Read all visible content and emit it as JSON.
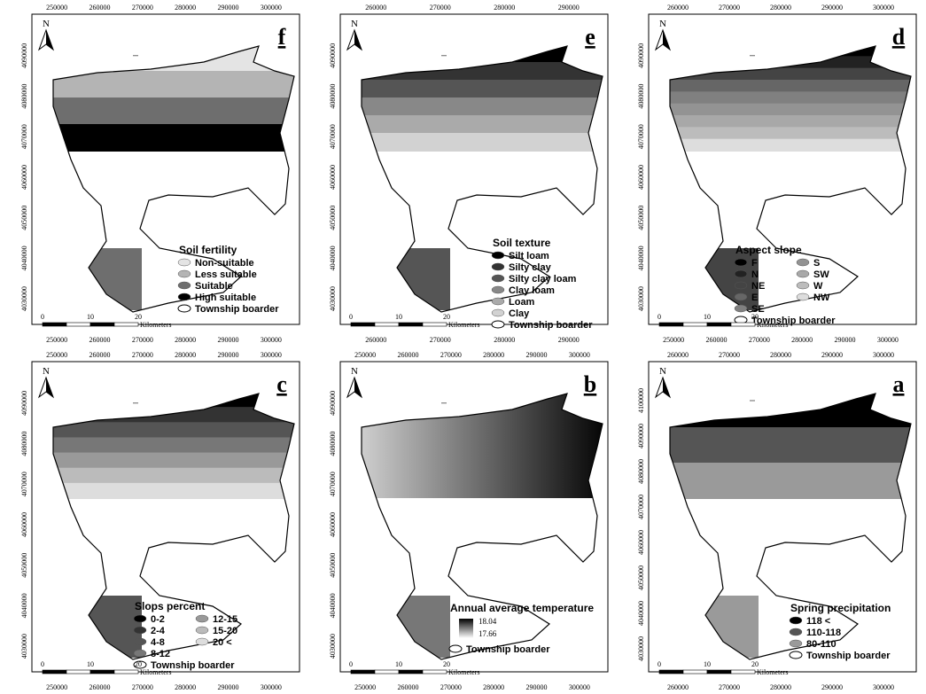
{
  "panels": [
    {
      "letter": "f",
      "north": "N",
      "xticks_top": [
        250000,
        260000,
        270000,
        280000,
        290000,
        300000
      ],
      "xticks_bottom": [
        250000,
        260000,
        270000,
        280000,
        290000,
        300000
      ],
      "yticks": [
        4090000,
        4080000,
        4070000,
        4060000,
        4050000,
        4040000,
        4030000
      ],
      "scale": {
        "ticks": [
          "0",
          "10",
          "20"
        ],
        "unit": "Kilometers"
      },
      "legend": {
        "title": "Soil fertility",
        "township": "Township boarder",
        "items": [
          {
            "label": "Non-suitable",
            "color": "#e4e4e4"
          },
          {
            "label": "Less suitable",
            "color": "#b4b4b4"
          },
          {
            "label": "Suitable",
            "color": "#6e6e6e"
          },
          {
            "label": "High suitable",
            "color": "#000000"
          }
        ]
      }
    },
    {
      "letter": "e",
      "north": "N",
      "xticks_top": [
        260000,
        270000,
        280000,
        290000
      ],
      "xticks_bottom": [
        260000,
        270000,
        280000,
        290000
      ],
      "yticks": [
        4090000,
        4080000,
        4070000,
        4060000,
        4050000,
        4040000,
        4030000
      ],
      "scale": {
        "ticks": [
          "0",
          "10",
          "20"
        ],
        "unit": "Kilometers"
      },
      "legend": {
        "title": "Soil texture",
        "township": "Township boarder",
        "items": [
          {
            "label": "Silt loam",
            "color": "#000000"
          },
          {
            "label": "Silty clay",
            "color": "#333333"
          },
          {
            "label": "Silty clay loam",
            "color": "#555555"
          },
          {
            "label": "Clay loam",
            "color": "#888888"
          },
          {
            "label": "Loam",
            "color": "#aaaaaa"
          },
          {
            "label": "Clay",
            "color": "#d2d2d2"
          }
        ]
      }
    },
    {
      "letter": "d",
      "north": "N",
      "xticks_top": [
        260000,
        270000,
        280000,
        290000,
        300000
      ],
      "xticks_bottom": [
        250000,
        260000,
        270000,
        280000,
        290000,
        300000
      ],
      "yticks": [
        4090000,
        4080000,
        4070000,
        4060000,
        4050000,
        4040000,
        4030000
      ],
      "scale": {
        "ticks": [
          "0",
          "10",
          "20"
        ],
        "unit": "Kilometers"
      },
      "legend": {
        "title": "Aspect slope",
        "township": "Township boarder",
        "items": [
          {
            "label": "F",
            "color": "#000000"
          },
          {
            "label": "N",
            "color": "#222222"
          },
          {
            "label": "NE",
            "color": "#444444"
          },
          {
            "label": "E",
            "color": "#666666"
          },
          {
            "label": "SE",
            "color": "#808080"
          },
          {
            "label": "S",
            "color": "#939393"
          },
          {
            "label": "SW",
            "color": "#a8a8a8"
          },
          {
            "label": "W",
            "color": "#bcbcbc"
          },
          {
            "label": "NW",
            "color": "#dddddd"
          }
        ]
      }
    },
    {
      "letter": "c",
      "north": "N",
      "xticks_top": [
        250000,
        260000,
        270000,
        280000,
        290000,
        300000
      ],
      "xticks_bottom": [
        250000,
        260000,
        270000,
        280000,
        290000,
        300000
      ],
      "yticks": [
        4090000,
        4080000,
        4070000,
        4060000,
        4050000,
        4040000,
        4030000
      ],
      "scale": {
        "ticks": [
          "0",
          "10",
          "20"
        ],
        "unit": "Kilometers"
      },
      "legend": {
        "title": "Slops percent",
        "township": "Township boarder",
        "items": [
          {
            "label": "0-2",
            "color": "#000000"
          },
          {
            "label": "2-4",
            "color": "#333333"
          },
          {
            "label": "4-8",
            "color": "#555555"
          },
          {
            "label": "8-12",
            "color": "#777777"
          },
          {
            "label": "12-15",
            "color": "#999999"
          },
          {
            "label": "15-20",
            "color": "#bbbbbb"
          },
          {
            "label": "20 <",
            "color": "#dddddd"
          }
        ]
      }
    },
    {
      "letter": "b",
      "north": "N",
      "xticks_top": [
        250000,
        260000,
        270000,
        280000,
        290000,
        300000
      ],
      "xticks_bottom": [
        250000,
        260000,
        270000,
        280000,
        290000,
        300000
      ],
      "yticks": [
        4090000,
        4080000,
        4070000,
        4060000,
        4050000,
        4040000,
        4030000
      ],
      "scale": {
        "ticks": [
          "0",
          "10",
          "20"
        ],
        "unit": "Kilometers"
      },
      "legend": {
        "title": "Annual average temperature",
        "township": "Township boarder",
        "max": 18.04,
        "min": 17.66
      }
    },
    {
      "letter": "a",
      "north": "N",
      "xticks_top": [
        260000,
        270000,
        280000,
        290000,
        300000
      ],
      "xticks_bottom": [
        260000,
        270000,
        280000,
        290000,
        300000
      ],
      "yticks": [
        4100000,
        4090000,
        4080000,
        4070000,
        4060000,
        4050000,
        4040000,
        4030000
      ],
      "scale": {
        "ticks": [
          "0",
          "10",
          "20"
        ],
        "unit": "Kilometers"
      },
      "legend": {
        "title": "Spring precipitation",
        "township": "Township boarder",
        "items": [
          {
            "label": "118 <",
            "color": "#000000"
          },
          {
            "label": "110-118",
            "color": "#555555"
          },
          {
            "label": "80-110",
            "color": "#9a9a9a"
          }
        ]
      }
    }
  ]
}
